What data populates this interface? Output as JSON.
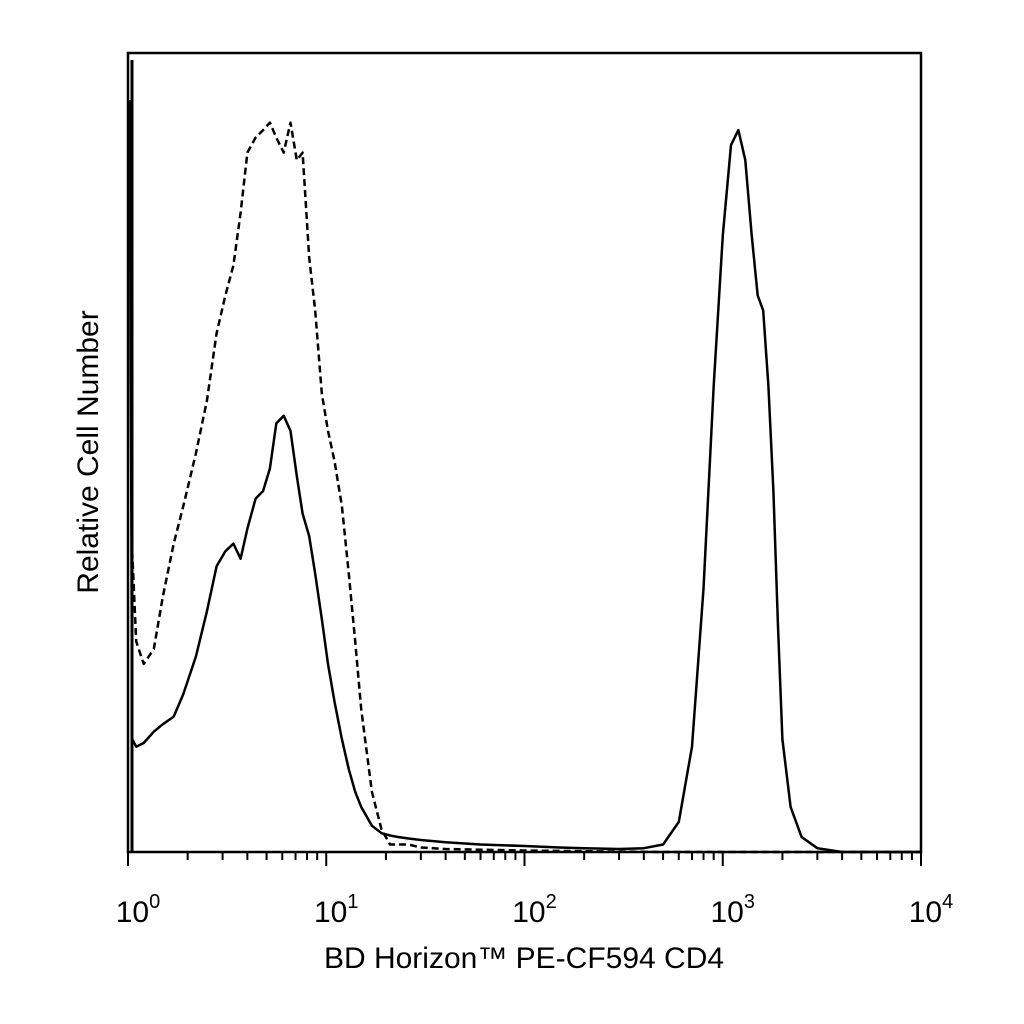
{
  "chart_data": {
    "type": "line",
    "xlabel": "BD Horizon™ PE-CF594 CD4",
    "ylabel": "Relative Cell Number",
    "x_scale": "log",
    "xlim": [
      1,
      10000
    ],
    "ylim": [
      0,
      100
    ],
    "grid": false,
    "x_ticks": [
      {
        "base": "10",
        "exp": "0",
        "value": 1
      },
      {
        "base": "10",
        "exp": "1",
        "value": 10
      },
      {
        "base": "10",
        "exp": "2",
        "value": 100
      },
      {
        "base": "10",
        "exp": "3",
        "value": 1000
      },
      {
        "base": "10",
        "exp": "4",
        "value": 10000
      }
    ],
    "series": [
      {
        "style": "dashed",
        "color": "#000000",
        "x": [
          1.02,
          1.05,
          1.1,
          1.2,
          1.35,
          1.5,
          1.7,
          1.9,
          2.2,
          2.5,
          2.8,
          3.1,
          3.4,
          3.7,
          4.0,
          4.4,
          4.8,
          5.2,
          5.6,
          6.1,
          6.6,
          7.1,
          7.6,
          8.2,
          8.8,
          9.5,
          10.2,
          11,
          12,
          13,
          14,
          15,
          17,
          19,
          21,
          23,
          26,
          30,
          40,
          60,
          100,
          200,
          500,
          1000,
          3000,
          10000
        ],
        "y": [
          100,
          40,
          28,
          25,
          27,
          34,
          41,
          46,
          53,
          60,
          69,
          74,
          78,
          85,
          93,
          95,
          96,
          97,
          95,
          93,
          97,
          92,
          93,
          79,
          72,
          61,
          56,
          52,
          46,
          37,
          28,
          19,
          8,
          3,
          1,
          1,
          1,
          0.6,
          0.4,
          0.3,
          0.2,
          0.1,
          0,
          0,
          0,
          0
        ]
      },
      {
        "style": "solid",
        "color": "#000000",
        "x": [
          1.02,
          1.05,
          1.1,
          1.2,
          1.35,
          1.5,
          1.7,
          1.9,
          2.2,
          2.5,
          2.8,
          3.1,
          3.4,
          3.7,
          4.0,
          4.4,
          4.8,
          5.2,
          5.6,
          6.1,
          6.6,
          7.1,
          7.6,
          8.2,
          8.8,
          9.5,
          10.2,
          11,
          12,
          13,
          14,
          15,
          17,
          19,
          21,
          23,
          26,
          30,
          40,
          60,
          100,
          150,
          200,
          300,
          400,
          500,
          600,
          700,
          800,
          900,
          1000,
          1100,
          1200,
          1300,
          1400,
          1500,
          1600,
          1700,
          1800,
          1900,
          2000,
          2200,
          2500,
          3000,
          4000,
          10000
        ],
        "y": [
          100,
          15,
          14,
          14.5,
          16,
          17,
          18,
          21,
          26,
          32,
          38,
          40,
          41,
          39,
          43,
          47,
          48,
          51,
          57,
          58,
          56,
          50,
          45,
          42,
          37,
          31,
          25,
          20,
          15,
          11,
          8,
          6,
          3.5,
          2.5,
          2.2,
          2,
          1.8,
          1.6,
          1.3,
          1,
          0.8,
          0.6,
          0.5,
          0.4,
          0.5,
          1,
          4,
          14,
          35,
          62,
          82,
          94,
          96,
          92,
          82,
          74,
          72,
          62,
          48,
          30,
          15,
          6,
          2,
          0.5,
          0,
          0
        ]
      }
    ]
  }
}
